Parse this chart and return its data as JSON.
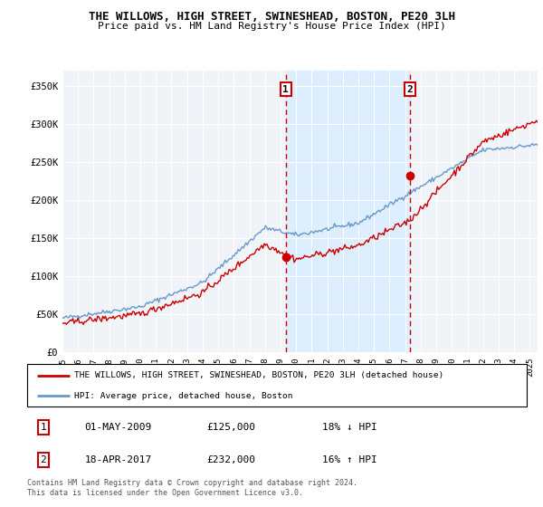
{
  "title": "THE WILLOWS, HIGH STREET, SWINESHEAD, BOSTON, PE20 3LH",
  "subtitle": "Price paid vs. HM Land Registry's House Price Index (HPI)",
  "ylim": [
    0,
    370000
  ],
  "yticks": [
    0,
    50000,
    100000,
    150000,
    200000,
    250000,
    300000,
    350000
  ],
  "ytick_labels": [
    "£0",
    "£50K",
    "£100K",
    "£150K",
    "£200K",
    "£250K",
    "£300K",
    "£350K"
  ],
  "xlim_start": 1995.0,
  "xlim_end": 2025.5,
  "sale1_date": 2009.33,
  "sale1_price": 125000,
  "sale2_date": 2017.29,
  "sale2_price": 232000,
  "line1_color": "#cc0000",
  "line2_color": "#6699cc",
  "shade_color": "#ddeeff",
  "legend_label1": "THE WILLOWS, HIGH STREET, SWINESHEAD, BOSTON, PE20 3LH (detached house)",
  "legend_label2": "HPI: Average price, detached house, Boston",
  "table_rows": [
    [
      "1",
      "01-MAY-2009",
      "£125,000",
      "18% ↓ HPI"
    ],
    [
      "2",
      "18-APR-2017",
      "£232,000",
      "16% ↑ HPI"
    ]
  ],
  "footer": "Contains HM Land Registry data © Crown copyright and database right 2024.\nThis data is licensed under the Open Government Licence v3.0.",
  "background_color": "#f0f4f8"
}
